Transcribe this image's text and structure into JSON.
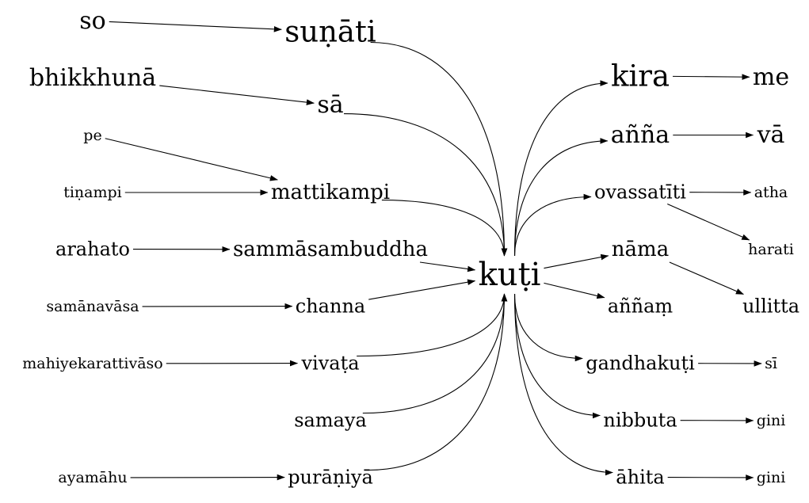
{
  "nodes": {
    "so": "so",
    "sunati": "suṇāti",
    "bhikkhuna": "bhikkhunā",
    "sa": "sā",
    "pe": "pe",
    "tinampi": "tiṇampi",
    "mattikampi": "mattikampi",
    "arahato": "arahato",
    "sammasambuddha": "sammāsambuddha",
    "samanavasa": "samānavāsa",
    "channa": "channa",
    "mahiyekarattivaso": "mahiyekarattivāso",
    "vivata": "vivaṭa",
    "samaya": "samaya",
    "ayamahu": "ayamāhu",
    "puraniya": "purāṇiyā",
    "kuti": "kuṭi",
    "kira": "kira",
    "me": "me",
    "anna": "añña",
    "va": "vā",
    "ovassatiti": "ovassatīti",
    "atha": "atha",
    "harati": "harati",
    "nama": "nāma",
    "ullitta": "ullitta",
    "annam": "aññaṃ",
    "gandhakuti": "gandhakuṭi",
    "si": "sī",
    "nibbuta": "nibbuta",
    "gini1": "gini",
    "ahita": "āhita",
    "gini2": "gini"
  },
  "edges": [
    [
      "so",
      "sunati"
    ],
    [
      "bhikkhuna",
      "sa"
    ],
    [
      "pe",
      "mattikampi"
    ],
    [
      "tinampi",
      "mattikampi"
    ],
    [
      "arahato",
      "sammasambuddha"
    ],
    [
      "samanavasa",
      "channa"
    ],
    [
      "mahiyekarattivaso",
      "vivata"
    ],
    [
      "ayamahu",
      "puraniya"
    ],
    [
      "sunati",
      "kuti"
    ],
    [
      "sa",
      "kuti"
    ],
    [
      "mattikampi",
      "kuti"
    ],
    [
      "sammasambuddha",
      "kuti"
    ],
    [
      "channa",
      "kuti"
    ],
    [
      "vivata",
      "kuti"
    ],
    [
      "samaya",
      "kuti"
    ],
    [
      "puraniya",
      "kuti"
    ],
    [
      "kuti",
      "kira"
    ],
    [
      "kuti",
      "anna"
    ],
    [
      "kuti",
      "ovassatiti"
    ],
    [
      "kuti",
      "nama"
    ],
    [
      "kuti",
      "annam"
    ],
    [
      "kuti",
      "gandhakuti"
    ],
    [
      "kuti",
      "nibbuta"
    ],
    [
      "kuti",
      "ahita"
    ],
    [
      "kira",
      "me"
    ],
    [
      "anna",
      "va"
    ],
    [
      "ovassatiti",
      "atha"
    ],
    [
      "ovassatiti",
      "harati"
    ],
    [
      "nama",
      "ullitta"
    ],
    [
      "gandhakuti",
      "si"
    ],
    [
      "nibbuta",
      "gini1"
    ],
    [
      "ahita",
      "gini2"
    ]
  ]
}
